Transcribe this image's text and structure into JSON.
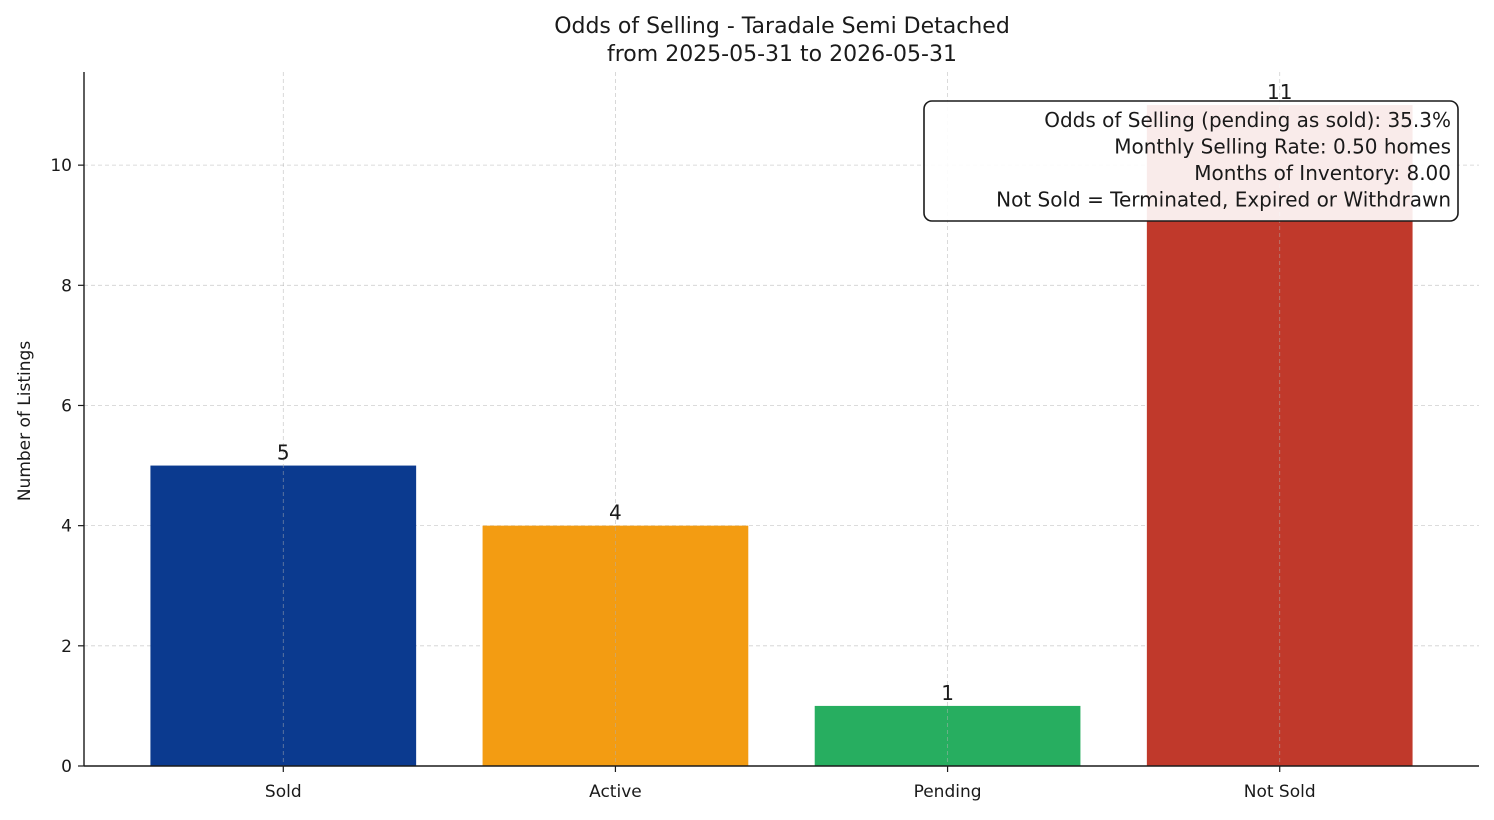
{
  "chart_data": {
    "type": "bar",
    "title": "Odds of Selling - Taradale Semi Detached",
    "subtitle": "from 2025-05-31 to 2026-05-31",
    "xlabel": "",
    "ylabel": "Number of Listings",
    "categories": [
      "Sold",
      "Active",
      "Pending",
      "Not Sold"
    ],
    "values": [
      5,
      4,
      1,
      11
    ],
    "colors": [
      "#0b3a8f",
      "#f39c12",
      "#27ae60",
      "#c0392b"
    ],
    "data_labels": [
      "5",
      "4",
      "1",
      "11"
    ],
    "ylim": [
      0,
      11.55
    ],
    "yticks": [
      0,
      2,
      4,
      6,
      8,
      10
    ],
    "grid": true,
    "annotation": {
      "placement": "top-right",
      "lines": [
        "Odds of Selling (pending as sold): 35.3%",
        "Monthly Selling Rate: 0.50 homes",
        "Months of Inventory: 8.00",
        "Not Sold = Terminated, Expired or Withdrawn"
      ]
    }
  }
}
